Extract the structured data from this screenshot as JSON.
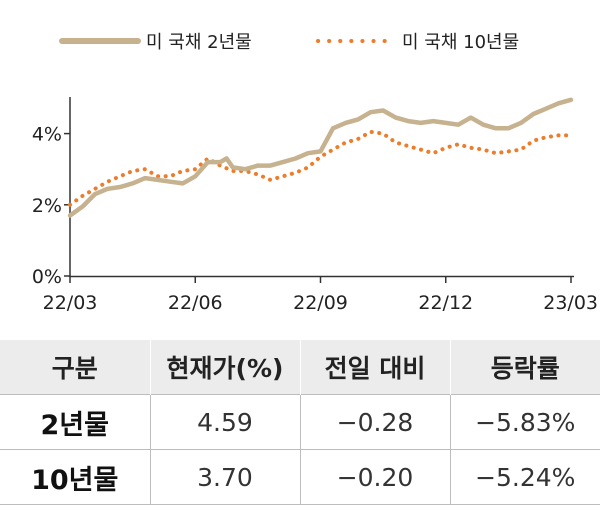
{
  "chart_data": {
    "type": "line",
    "xlabel": "",
    "ylabel": "",
    "ylim": [
      0,
      5
    ],
    "y_unit": "%",
    "x_ticks": [
      "22/03",
      "22/06",
      "22/09",
      "22/12",
      "23/03"
    ],
    "y_ticks": [
      "0%",
      "2%",
      "4%"
    ],
    "y_tick_values": [
      0,
      2,
      4
    ],
    "grid": false,
    "legend_position": "top",
    "series": [
      {
        "name": "미 국채 2년물",
        "color": "#c6b28f",
        "style": "solid",
        "x": [
          0,
          0.1,
          0.2,
          0.3,
          0.4,
          0.5,
          0.6,
          0.7,
          0.8,
          0.9,
          1.0,
          1.1,
          1.2,
          1.25,
          1.3,
          1.4,
          1.5,
          1.6,
          1.7,
          1.8,
          1.9,
          2.0,
          2.1,
          2.2,
          2.3,
          2.4,
          2.5,
          2.6,
          2.7,
          2.8,
          2.9,
          3.0,
          3.1,
          3.2,
          3.3,
          3.4,
          3.5,
          3.6,
          3.7,
          3.8,
          3.9,
          4.0
        ],
        "values": [
          1.7,
          1.95,
          2.3,
          2.45,
          2.5,
          2.6,
          2.75,
          2.7,
          2.65,
          2.6,
          2.8,
          3.2,
          3.2,
          3.3,
          3.05,
          3.0,
          3.1,
          3.1,
          3.2,
          3.3,
          3.45,
          3.5,
          4.15,
          4.3,
          4.4,
          4.6,
          4.65,
          4.45,
          4.35,
          4.3,
          4.35,
          4.3,
          4.25,
          4.45,
          4.25,
          4.15,
          4.15,
          4.3,
          4.55,
          4.7,
          4.85,
          4.95
        ]
      },
      {
        "name": "미 국채 10년물",
        "color": "#ee7d2b",
        "style": "dotted",
        "x": [
          0,
          0.1,
          0.2,
          0.3,
          0.4,
          0.5,
          0.6,
          0.7,
          0.8,
          0.9,
          1.0,
          1.1,
          1.2,
          1.3,
          1.4,
          1.5,
          1.6,
          1.7,
          1.8,
          1.9,
          2.0,
          2.1,
          2.2,
          2.3,
          2.4,
          2.5,
          2.6,
          2.7,
          2.8,
          2.9,
          3.0,
          3.1,
          3.2,
          3.3,
          3.4,
          3.5,
          3.6,
          3.7,
          3.8,
          3.9,
          4.0
        ],
        "values": [
          2.0,
          2.25,
          2.45,
          2.65,
          2.8,
          2.95,
          3.0,
          2.8,
          2.8,
          2.95,
          3.0,
          3.3,
          3.1,
          2.95,
          2.95,
          2.85,
          2.7,
          2.8,
          2.9,
          3.05,
          3.35,
          3.55,
          3.75,
          3.85,
          4.05,
          4.0,
          3.75,
          3.65,
          3.55,
          3.45,
          3.6,
          3.7,
          3.6,
          3.55,
          3.45,
          3.5,
          3.55,
          3.8,
          3.9,
          3.95,
          3.95
        ]
      }
    ]
  },
  "table": {
    "headers": [
      "구분",
      "현재가(%)",
      "전일 대비",
      "등락률"
    ],
    "rows": [
      [
        "2년물",
        "4.59",
        "−0.28",
        "−5.83%"
      ],
      [
        "10년물",
        "3.70",
        "−0.20",
        "−5.24%"
      ]
    ]
  }
}
